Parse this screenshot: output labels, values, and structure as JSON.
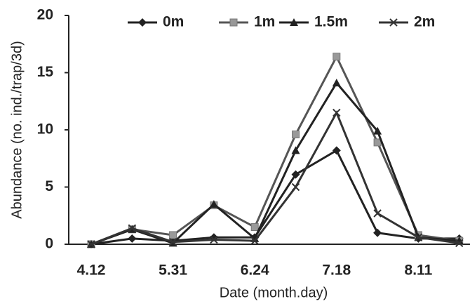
{
  "chart_data": {
    "type": "line",
    "x_label": "Date (month.day)",
    "y_label": "Abundance (no. ind./trap/3d)",
    "categories": [
      "4.12",
      null,
      "5.31",
      null,
      "6.24",
      null,
      "7.18",
      null,
      "8.11",
      null
    ],
    "series": [
      {
        "name": "0m",
        "color": "#222222",
        "marker": "diamond",
        "values": [
          0,
          0.5,
          0.3,
          0.6,
          0.6,
          6.1,
          8.2,
          1.0,
          0.5,
          0.5
        ]
      },
      {
        "name": "1m",
        "color": "#555555",
        "marker": "square",
        "values": [
          0,
          1.3,
          0.8,
          3.4,
          1.5,
          9.6,
          16.4,
          8.9,
          0.8,
          0.3
        ]
      },
      {
        "name": "1.5m",
        "color": "#222222",
        "marker": "triangle",
        "values": [
          0,
          1.3,
          0.1,
          3.5,
          0.5,
          8.2,
          14.1,
          9.9,
          0.6,
          0.3
        ]
      },
      {
        "name": "2m",
        "color": "#333333",
        "marker": "x",
        "values": [
          0,
          1.4,
          0.2,
          0.4,
          0.3,
          5.0,
          11.5,
          2.7,
          0.6,
          0.1
        ]
      }
    ],
    "ylim": [
      0,
      20
    ],
    "yticks": [
      0,
      5,
      10,
      15,
      20
    ],
    "grid": false,
    "legend": "top"
  }
}
